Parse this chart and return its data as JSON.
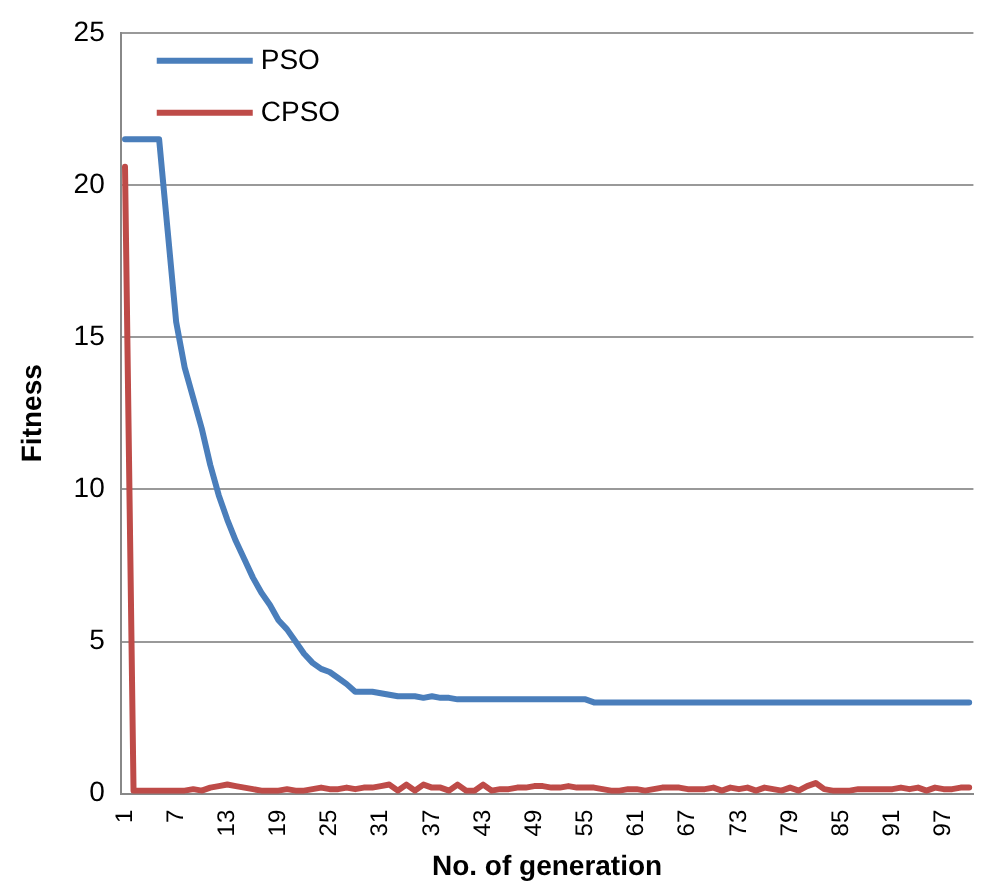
{
  "chart_data": {
    "type": "line",
    "xlabel": "No. of generation",
    "ylabel": "Fitness",
    "categories": [
      "1",
      null,
      null,
      null,
      null,
      null,
      "7",
      null,
      null,
      null,
      null,
      null,
      "13",
      null,
      null,
      null,
      null,
      null,
      "19",
      null,
      null,
      null,
      null,
      null,
      "25",
      null,
      null,
      null,
      null,
      null,
      "31",
      null,
      null,
      null,
      null,
      null,
      "37",
      null,
      null,
      null,
      null,
      null,
      "43",
      null,
      null,
      null,
      null,
      null,
      "49",
      null,
      null,
      null,
      null,
      null,
      "55",
      null,
      null,
      null,
      null,
      null,
      "61",
      null,
      null,
      null,
      null,
      null,
      "67",
      null,
      null,
      null,
      null,
      null,
      "73",
      null,
      null,
      null,
      null,
      null,
      "79",
      null,
      null,
      null,
      null,
      null,
      "85",
      null,
      null,
      null,
      null,
      null,
      "91",
      null,
      null,
      null,
      null,
      null,
      "97",
      null,
      null,
      null
    ],
    "series": [
      {
        "name": "PSO",
        "color": "#4a7ebb",
        "values": [
          21.5,
          21.5,
          21.5,
          21.5,
          21.5,
          18.5,
          15.5,
          14,
          13,
          12,
          10.8,
          9.8,
          9,
          8.3,
          7.7,
          7.1,
          6.6,
          6.2,
          5.7,
          5.4,
          5,
          4.6,
          4.3,
          4.1,
          4,
          3.8,
          3.6,
          3.35,
          3.35,
          3.35,
          3.3,
          3.25,
          3.2,
          3.2,
          3.2,
          3.15,
          3.2,
          3.15,
          3.15,
          3.1,
          3.1,
          3.1,
          3.1,
          3.1,
          3.1,
          3.1,
          3.1,
          3.1,
          3.1,
          3.1,
          3.1,
          3.1,
          3.1,
          3.1,
          3.1,
          3,
          3,
          3,
          3,
          3,
          3,
          3,
          3,
          3,
          3,
          3,
          3,
          3,
          3,
          3,
          3,
          3,
          3,
          3,
          3,
          3,
          3,
          3,
          3,
          3,
          3,
          3,
          3,
          3,
          3,
          3,
          3,
          3,
          3,
          3,
          3,
          3,
          3,
          3,
          3,
          3,
          3,
          3,
          3,
          3
        ]
      },
      {
        "name": "CPSO",
        "color": "#be4b48",
        "values": [
          20.6,
          0.1,
          0.1,
          0.1,
          0.1,
          0.1,
          0.1,
          0.1,
          0.15,
          0.1,
          0.2,
          0.25,
          0.3,
          0.25,
          0.2,
          0.15,
          0.1,
          0.1,
          0.1,
          0.15,
          0.1,
          0.1,
          0.15,
          0.2,
          0.15,
          0.15,
          0.2,
          0.15,
          0.2,
          0.2,
          0.25,
          0.3,
          0.1,
          0.3,
          0.1,
          0.3,
          0.2,
          0.2,
          0.1,
          0.3,
          0.1,
          0.1,
          0.3,
          0.1,
          0.15,
          0.15,
          0.2,
          0.2,
          0.25,
          0.25,
          0.2,
          0.2,
          0.25,
          0.2,
          0.2,
          0.2,
          0.15,
          0.1,
          0.1,
          0.15,
          0.15,
          0.1,
          0.15,
          0.2,
          0.2,
          0.2,
          0.15,
          0.15,
          0.15,
          0.2,
          0.1,
          0.2,
          0.15,
          0.2,
          0.1,
          0.2,
          0.15,
          0.1,
          0.2,
          0.1,
          0.25,
          0.35,
          0.15,
          0.1,
          0.1,
          0.1,
          0.15,
          0.15,
          0.15,
          0.15,
          0.15,
          0.2,
          0.15,
          0.2,
          0.1,
          0.2,
          0.15,
          0.15,
          0.2,
          0.2
        ]
      }
    ],
    "ylim": [
      0,
      25
    ],
    "yticks": [
      0,
      5,
      10,
      15,
      20,
      25
    ],
    "grid": "y",
    "legend": "top left",
    "marker": "none",
    "line_style": "solid"
  }
}
